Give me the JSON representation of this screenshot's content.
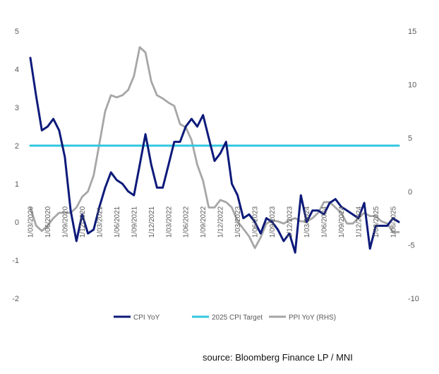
{
  "chart_data": {
    "type": "line",
    "title": "",
    "xlabel": "",
    "ylabel_left": "",
    "ylabel_right": "",
    "ylim_left": [
      -2,
      5
    ],
    "ylim_right": [
      -10,
      15
    ],
    "yticks_left": [
      -2,
      -1,
      0,
      1,
      2,
      3,
      4,
      5
    ],
    "yticks_right": [
      -10,
      -5,
      0,
      5,
      10,
      15
    ],
    "x_tick_labels": [
      "1/03/2020",
      "1/06/2020",
      "1/09/2020",
      "1/12/2020",
      "1/03/2021",
      "1/06/2021",
      "1/09/2021",
      "1/12/2021",
      "1/03/2022",
      "1/06/2022",
      "1/09/2022",
      "1/12/2022",
      "1/03/2023",
      "1/06/2023",
      "1/09/2023",
      "1/12/2023",
      "1/03/2024",
      "1/06/2024",
      "1/09/2024",
      "1/12/2024",
      "1/03/2025",
      "1/06/2025"
    ],
    "grid": false,
    "series": [
      {
        "name": "CPI YoY",
        "axis": "left",
        "color": "#0d1a7a",
        "values": [
          4.3,
          3.3,
          2.4,
          2.5,
          2.7,
          2.4,
          1.7,
          0.3,
          -0.5,
          0.2,
          -0.3,
          -0.2,
          0.4,
          0.9,
          1.3,
          1.1,
          1.0,
          0.8,
          0.7,
          1.5,
          2.3,
          1.5,
          0.9,
          0.9,
          1.5,
          2.1,
          2.1,
          2.5,
          2.7,
          2.5,
          2.8,
          2.2,
          1.6,
          1.8,
          2.1,
          1.0,
          0.7,
          0.1,
          0.2,
          0.0,
          -0.3,
          0.1,
          0.0,
          -0.2,
          -0.5,
          -0.3,
          -0.8,
          0.7,
          0.0,
          0.3,
          0.3,
          0.2,
          0.5,
          0.6,
          0.4,
          0.3,
          0.2,
          0.1,
          0.5,
          -0.7,
          -0.1,
          -0.1,
          -0.1,
          0.1,
          0.0
        ]
      },
      {
        "name": "2025 CPI Target",
        "axis": "left",
        "color": "#33c7e0",
        "values": [
          2.0,
          2.0
        ]
      },
      {
        "name": "PPI YoY (RHS)",
        "axis": "right",
        "color": "#a6a6a6",
        "values": [
          -1.5,
          -3.2,
          -3.7,
          -3.2,
          -2.5,
          -2.0,
          -2.0,
          -2.0,
          -1.5,
          -0.5,
          0.0,
          1.5,
          4.5,
          7.5,
          9.0,
          8.8,
          9.0,
          9.5,
          10.8,
          13.5,
          13.0,
          10.3,
          9.0,
          8.7,
          8.3,
          8.0,
          6.3,
          6.0,
          4.8,
          2.5,
          1.0,
          -1.5,
          -1.5,
          -0.8,
          -1.0,
          -1.5,
          -2.8,
          -3.5,
          -4.2,
          -5.3,
          -4.3,
          -3.0,
          -2.7,
          -2.8,
          -3.0,
          -2.7,
          -2.5,
          -2.8,
          -2.8,
          -2.5,
          -2.0,
          -1.0,
          -1.0,
          -1.5,
          -2.0,
          -3.0,
          -3.0,
          -2.5,
          -2.0,
          -2.3,
          -2.3,
          -2.8,
          -3.0,
          -3.8,
          -3.8
        ]
      }
    ],
    "legend": [
      "CPI YoY",
      "2025 CPI Target",
      "PPI YoY (RHS)"
    ],
    "legend_position": "bottom"
  },
  "source_text": "source: Bloomberg Finance LP / MNI"
}
